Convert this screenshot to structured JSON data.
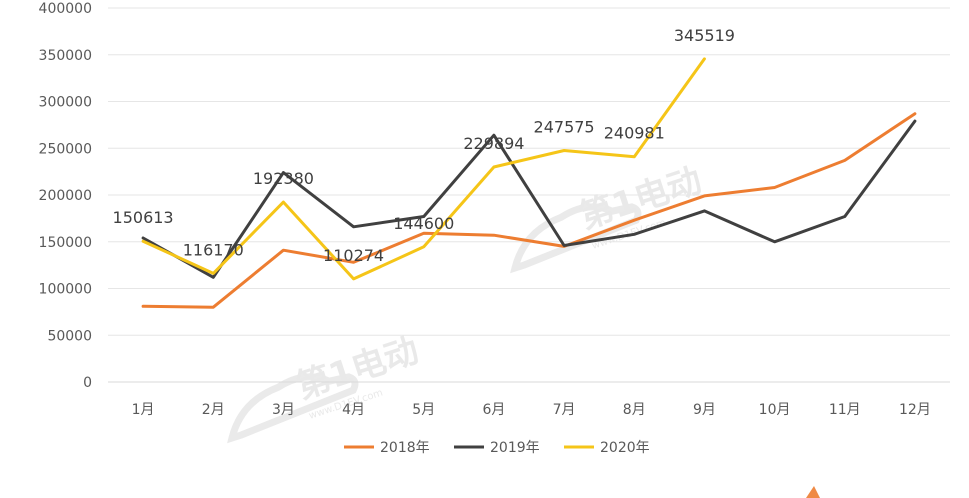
{
  "chart_data": {
    "type": "line",
    "title": "",
    "xlabel": "",
    "ylabel": "",
    "categories": [
      "1月",
      "2月",
      "3月",
      "4月",
      "5月",
      "6月",
      "7月",
      "8月",
      "9月",
      "10月",
      "11月",
      "12月"
    ],
    "ylim": [
      0,
      400000
    ],
    "yticks": [
      0,
      50000,
      100000,
      150000,
      200000,
      250000,
      300000,
      350000,
      400000
    ],
    "grid": true,
    "legend_position": "bottom",
    "series": [
      {
        "name": "2018年",
        "color": "#ed7d31",
        "values": [
          81000,
          80000,
          141000,
          128000,
          159000,
          157000,
          145000,
          173000,
          199000,
          208000,
          237000,
          287000
        ]
      },
      {
        "name": "2019年",
        "color": "#404040",
        "values": [
          154000,
          112000,
          224000,
          166000,
          177000,
          264000,
          146000,
          158000,
          183000,
          150000,
          177000,
          279000
        ]
      },
      {
        "name": "2020年",
        "color": "#f5c518",
        "values": [
          150613,
          116170,
          192380,
          110274,
          144600,
          229894,
          247575,
          240981,
          345519,
          null,
          null,
          null
        ],
        "data_labels": [
          "150613",
          "116170",
          "192380",
          "110274",
          "144600",
          "229894",
          "247575",
          "240981",
          "345519"
        ]
      }
    ]
  },
  "watermark": {
    "text": "第1电动",
    "url": "www.D1EV.com"
  }
}
